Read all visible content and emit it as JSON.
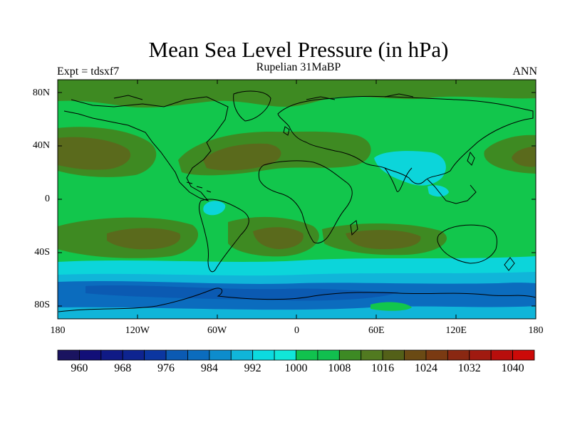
{
  "title": "Mean Sea Level Pressure (in hPa)",
  "subtitle": "Rupelian  31MaBP",
  "left_label": "Expt = tdsxf7",
  "right_label": "ANN",
  "lat_labels": [
    {
      "text": "80N",
      "lat": 80
    },
    {
      "text": "40N",
      "lat": 40
    },
    {
      "text": "0",
      "lat": 0
    },
    {
      "text": "40S",
      "lat": -40
    },
    {
      "text": "80S",
      "lat": -80
    }
  ],
  "lon_labels": [
    {
      "text": "180",
      "lon": -180
    },
    {
      "text": "120W",
      "lon": -120
    },
    {
      "text": "60W",
      "lon": -60
    },
    {
      "text": "0",
      "lon": 0
    },
    {
      "text": "60E",
      "lon": 60
    },
    {
      "text": "120E",
      "lon": 120
    },
    {
      "text": "180",
      "lon": 180
    }
  ],
  "colorbar": {
    "colors": [
      "#1a1460",
      "#120f78",
      "#101a86",
      "#0e2490",
      "#0b36a0",
      "#0b5ab2",
      "#0b6cbe",
      "#0d8ccc",
      "#10b5d9",
      "#0cdadf",
      "#11e6d8",
      "#11c24e",
      "#11bf4f",
      "#3d8a24",
      "#517a20",
      "#536018",
      "#6a4a14",
      "#7a3a12",
      "#8a2812",
      "#a01a10",
      "#b80e0c",
      "#cc0a08"
    ],
    "labels": [
      "960",
      "968",
      "976",
      "984",
      "992",
      "1000",
      "1008",
      "1016",
      "1024",
      "1032",
      "1040"
    ],
    "label_slots": [
      1,
      3,
      5,
      7,
      9,
      11,
      13,
      15,
      17,
      19,
      21
    ]
  },
  "map_colors": {
    "ocean": "#12c64c",
    "high": "#3e8a22",
    "high_core": "#5a6a1c",
    "low": "#0cd5da",
    "low_mid": "#0b8ccc",
    "low_deep": "#0b5ab2",
    "coast": "#000000"
  }
}
